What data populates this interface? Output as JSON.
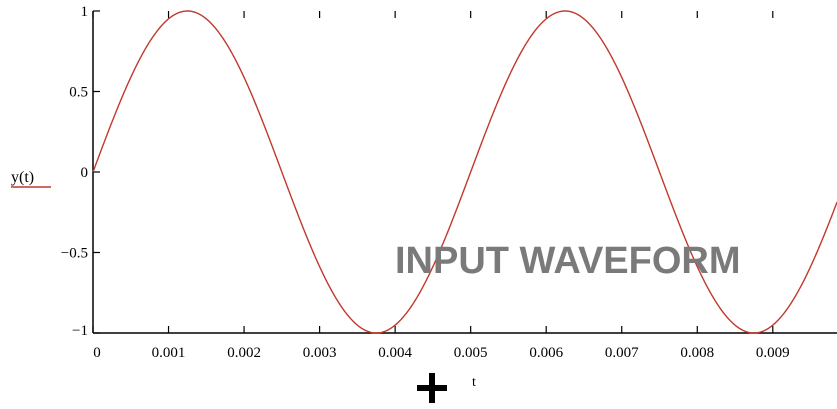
{
  "chart_data": {
    "type": "line",
    "title": "",
    "xlabel": "t",
    "ylabel": "y(t)",
    "annotation": "INPUT WAVEFORM",
    "xlim": [
      0,
      0.00985
    ],
    "ylim": [
      -1,
      1
    ],
    "x_ticks": [
      0,
      0.001,
      0.002,
      0.003,
      0.004,
      0.005,
      0.006,
      0.007,
      0.008,
      0.009
    ],
    "x_tick_labels": [
      "0",
      "0.001",
      "0.002",
      "0.003",
      "0.004",
      "0.005",
      "0.006",
      "0.007",
      "0.008",
      "0.009"
    ],
    "y_ticks": [
      1,
      0.5,
      0,
      -0.5,
      -1
    ],
    "y_tick_labels": [
      "1",
      "0.5",
      "0",
      "−0.5",
      "−1"
    ],
    "grid": false,
    "legend": "left",
    "series": [
      {
        "name": "y(t)",
        "color": "#c0392b",
        "function": "sine",
        "frequency_hz": 200,
        "amplitude": 1
      }
    ],
    "colors": {
      "axis": "#000000",
      "series": "#c0392b",
      "annotation": "#7a7a7a"
    },
    "icons": [
      "crosshair-plus-icon"
    ]
  }
}
